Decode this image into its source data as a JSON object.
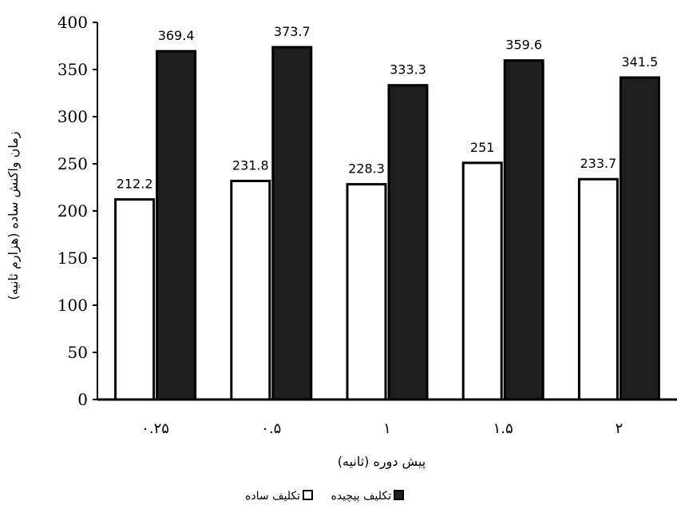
{
  "chart_data": {
    "type": "bar",
    "categories": [
      "۰.۲۵",
      "۰.۵",
      "۱",
      "۱.۵",
      "۲"
    ],
    "series": [
      {
        "name": "تکلیف ساده",
        "values": [
          212.2,
          231.8,
          228.3,
          251,
          233.7
        ],
        "fill": "#ffffff",
        "stroke": "#000000"
      },
      {
        "name": "تکلیف پیچیده",
        "values": [
          369.4,
          373.7,
          333.3,
          359.6,
          341.5
        ],
        "fill": "#1e1e1e",
        "stroke": "#000000"
      }
    ],
    "value_labels": [
      [
        "212.2",
        "231.8",
        "228.3",
        "251",
        "233.7"
      ],
      [
        "369.4",
        "373.7",
        "333.3",
        "359.6",
        "341.5"
      ]
    ],
    "ylim": [
      0,
      400
    ],
    "yticks": [
      0,
      50,
      100,
      150,
      200,
      250,
      300,
      350,
      400
    ],
    "ytick_labels": [
      "0",
      "50",
      "100",
      "150",
      "200",
      "250",
      "300",
      "350",
      "400"
    ],
    "xlabel": "پیش دوره (ثانیه)",
    "ylabel": "زمان واکنش ساده (هزارم ثانیه)",
    "legend_position": "bottom",
    "grid": false
  }
}
